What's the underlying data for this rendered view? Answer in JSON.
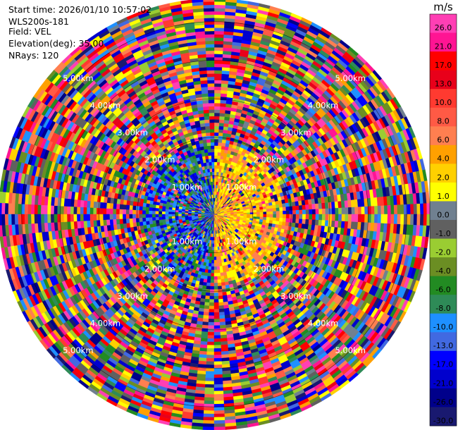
{
  "header": {
    "start_time": "Start time: 2026/01/10 10:57:02",
    "instrument": "WLS200s-181",
    "field": "Field: VEL",
    "elevation": "Elevation(deg): 35.00",
    "nrays": "NRays: 120"
  },
  "chart_data": {
    "type": "heatmap",
    "projection": "polar-ppi",
    "field": "VEL",
    "nrays": 120,
    "range_rings_km": [
      1,
      2,
      3,
      4,
      5
    ],
    "ring_labels": [
      "1.00km",
      "2.00km",
      "3.00km",
      "4.00km",
      "5.00km"
    ],
    "max_range_km": 5.6,
    "colorbar": {
      "unit": "m/s",
      "ticks": [
        "26.0",
        "21.0",
        "17.0",
        "13.0",
        "10.0",
        "8.0",
        "6.0",
        "4.0",
        "2.0",
        "1.0",
        "0.0",
        "-1.0",
        "-2.0",
        "-4.0",
        "-6.0",
        "-8.0",
        "-10.0",
        "-13.0",
        "-17.0",
        "-21.0",
        "-26.0",
        "-30.0"
      ],
      "colors": [
        "#ff3fb4",
        "#ff1493",
        "#ff0000",
        "#e8001a",
        "#ff3a30",
        "#ff5a45",
        "#ff7f50",
        "#ffa000",
        "#ffd000",
        "#ffff00",
        "#708090",
        "#606060",
        "#9acd32",
        "#6b8e23",
        "#228b22",
        "#2e8b57",
        "#1e90ff",
        "#4169e1",
        "#0000ff",
        "#0000cd",
        "#00008b",
        "#191970"
      ]
    }
  }
}
